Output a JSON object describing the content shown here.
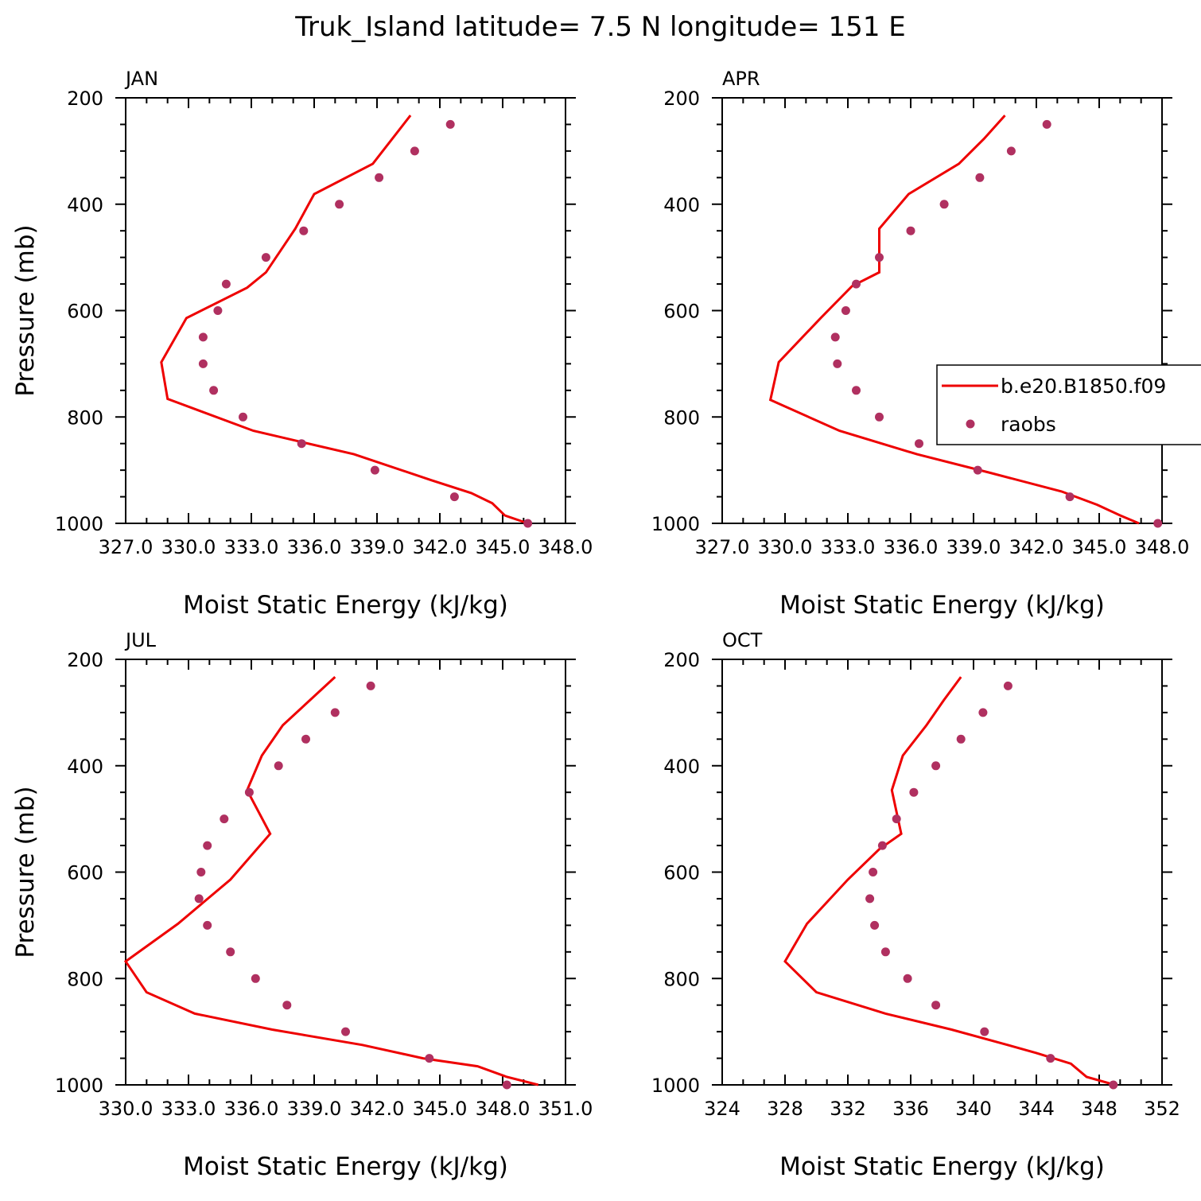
{
  "suptitle": "Truk_Island  latitude= 7.5 N longitude= 151 E",
  "colors": {
    "model": "#ee0000",
    "obs": "#b03060",
    "frame": "#000000"
  },
  "legend": {
    "model_label": "b.e20.B1850.f09",
    "obs_label": "raobs",
    "placement": "right-middle of APR panel, clipped at figure edge"
  },
  "chart_data": [
    {
      "type": "line",
      "title": "JAN",
      "xlabel": "Moist Static Energy (kJ/kg)",
      "ylabel": "Pressure (mb)",
      "xlim": [
        327.0,
        348.0
      ],
      "ylim": [
        1000,
        200
      ],
      "y_inverted": true,
      "xticks": [
        327.0,
        330.0,
        333.0,
        336.0,
        339.0,
        342.0,
        345.0,
        348.0
      ],
      "xticklabels": [
        "327.0",
        "330.0",
        "333.0",
        "336.0",
        "339.0",
        "342.0",
        "345.0",
        "348.0"
      ],
      "yticks": [
        200,
        400,
        600,
        800,
        1000
      ],
      "yticklabels": [
        "200",
        "400",
        "600",
        "800",
        "1000"
      ],
      "series": [
        {
          "name": "b.e20.B1850.f09",
          "kind": "line",
          "x": [
            340.6,
            338.8,
            336.0,
            335.1,
            333.7,
            332.8,
            329.9,
            328.7,
            329.0,
            333.1,
            337.9,
            341.6,
            343.5,
            344.5,
            345.1,
            346.2
          ],
          "y": [
            233,
            324,
            381,
            446,
            528,
            557,
            614,
            697,
            766,
            826,
            870,
            919,
            943,
            962,
            985,
            1000
          ]
        },
        {
          "name": "raobs",
          "kind": "scatter",
          "x": [
            342.5,
            340.8,
            339.1,
            337.2,
            335.5,
            333.7,
            331.8,
            331.4,
            330.7,
            330.7,
            331.2,
            332.6,
            335.4,
            338.9,
            342.7,
            346.2
          ],
          "y": [
            250,
            300,
            350,
            400,
            450,
            500,
            550,
            600,
            650,
            700,
            750,
            800,
            850,
            900,
            950,
            1000
          ]
        }
      ]
    },
    {
      "type": "line",
      "title": "APR",
      "xlabel": "Moist Static Energy (kJ/kg)",
      "ylabel": "",
      "xlim": [
        327.0,
        348.0
      ],
      "ylim": [
        1000,
        200
      ],
      "y_inverted": true,
      "xticks": [
        327.0,
        330.0,
        333.0,
        336.0,
        339.0,
        342.0,
        345.0,
        348.0
      ],
      "xticklabels": [
        "327.0",
        "330.0",
        "333.0",
        "336.0",
        "339.0",
        "342.0",
        "345.0",
        "348.0"
      ],
      "yticks": [
        200,
        400,
        600,
        800,
        1000
      ],
      "yticklabels": [
        "200",
        "400",
        "600",
        "800",
        "1000"
      ],
      "series": [
        {
          "name": "b.e20.B1850.f09",
          "kind": "line",
          "x": [
            340.5,
            339.5,
            338.3,
            335.9,
            334.5,
            334.5,
            333.2,
            331.7,
            329.7,
            329.3,
            332.6,
            336.3,
            339.8,
            343.2,
            344.9,
            346.0,
            346.9
          ],
          "y": [
            233,
            277,
            324,
            381,
            446,
            528,
            554,
            614,
            697,
            768,
            826,
            870,
            905,
            940,
            965,
            985,
            1000
          ]
        },
        {
          "name": "raobs",
          "kind": "scatter",
          "x": [
            342.5,
            340.8,
            339.3,
            337.6,
            336.0,
            334.5,
            333.4,
            332.9,
            332.4,
            332.5,
            333.4,
            334.5,
            336.4,
            339.2,
            343.6,
            347.8
          ],
          "y": [
            250,
            300,
            350,
            400,
            450,
            500,
            550,
            600,
            650,
            700,
            750,
            800,
            850,
            900,
            950,
            1000
          ]
        }
      ]
    },
    {
      "type": "line",
      "title": "JUL",
      "xlabel": "Moist Static Energy (kJ/kg)",
      "ylabel": "Pressure (mb)",
      "xlim": [
        330.0,
        351.0
      ],
      "ylim": [
        1000,
        200
      ],
      "y_inverted": true,
      "xticks": [
        330.0,
        333.0,
        336.0,
        339.0,
        342.0,
        345.0,
        348.0,
        351.0
      ],
      "xticklabels": [
        "330.0",
        "333.0",
        "336.0",
        "339.0",
        "342.0",
        "345.0",
        "348.0",
        "351.0"
      ],
      "yticks": [
        200,
        400,
        600,
        800,
        1000
      ],
      "yticklabels": [
        "200",
        "400",
        "600",
        "800",
        "1000"
      ],
      "series": [
        {
          "name": "b.e20.B1850.f09",
          "kind": "line",
          "x": [
            340.0,
            337.5,
            336.5,
            335.8,
            336.9,
            335.0,
            332.5,
            330.0,
            331.0,
            333.3,
            337.0,
            341.3,
            344.2,
            346.8,
            348.2,
            349.7
          ],
          "y": [
            233,
            324,
            381,
            446,
            528,
            614,
            697,
            768,
            826,
            866,
            896,
            925,
            950,
            965,
            985,
            1000
          ]
        },
        {
          "name": "raobs",
          "kind": "scatter",
          "x": [
            341.7,
            340.0,
            338.6,
            337.3,
            335.9,
            334.7,
            333.9,
            333.6,
            333.5,
            333.9,
            335.0,
            336.2,
            337.7,
            340.5,
            344.5,
            348.2
          ],
          "y": [
            250,
            300,
            350,
            400,
            450,
            500,
            550,
            600,
            650,
            700,
            750,
            800,
            850,
            900,
            950,
            1000
          ]
        }
      ]
    },
    {
      "type": "line",
      "title": "OCT",
      "xlabel": "Moist Static Energy (kJ/kg)",
      "ylabel": "",
      "xlim": [
        324,
        352
      ],
      "ylim": [
        1000,
        200
      ],
      "y_inverted": true,
      "xticks": [
        324,
        328,
        332,
        336,
        340,
        344,
        348,
        352
      ],
      "xticklabels": [
        "324",
        "328",
        "332",
        "336",
        "340",
        "344",
        "348",
        "352"
      ],
      "yticks": [
        200,
        400,
        600,
        800,
        1000
      ],
      "yticklabels": [
        "200",
        "400",
        "600",
        "800",
        "1000"
      ],
      "series": [
        {
          "name": "b.e20.B1850.f09",
          "kind": "line",
          "x": [
            339.2,
            338.1,
            337.0,
            335.5,
            334.8,
            335.4,
            334.0,
            332.0,
            329.4,
            328.0,
            330.0,
            334.4,
            338.6,
            341.8,
            344.0,
            346.2,
            347.2,
            349.0
          ],
          "y": [
            233,
            277,
            324,
            381,
            446,
            528,
            557,
            614,
            697,
            768,
            826,
            866,
            896,
            922,
            940,
            960,
            985,
            1000
          ]
        },
        {
          "name": "raobs",
          "kind": "scatter",
          "x": [
            342.2,
            340.6,
            339.2,
            337.6,
            336.2,
            335.1,
            334.2,
            333.6,
            333.4,
            333.7,
            334.4,
            335.8,
            337.6,
            340.7,
            344.9,
            348.9
          ],
          "y": [
            250,
            300,
            350,
            400,
            450,
            500,
            550,
            600,
            650,
            700,
            750,
            800,
            850,
            900,
            950,
            1000
          ]
        }
      ]
    }
  ]
}
